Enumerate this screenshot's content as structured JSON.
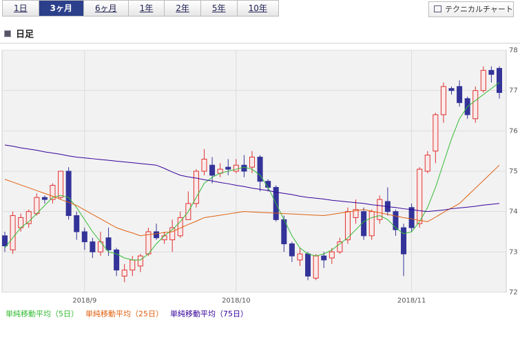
{
  "tabs": [
    {
      "label": "1日",
      "active": false
    },
    {
      "label": "3ヶ月",
      "active": true
    },
    {
      "label": "6ヶ月",
      "active": false
    },
    {
      "label": "1年",
      "active": false
    },
    {
      "label": "2年",
      "active": false
    },
    {
      "label": "5年",
      "active": false
    },
    {
      "label": "10年",
      "active": false
    }
  ],
  "button": "テクニカルチャート",
  "heading": "日足",
  "chart_data": {
    "type": "candlestick",
    "categories": [
      null,
      null,
      null,
      null,
      null,
      null,
      null,
      null,
      null,
      null,
      "2018/9",
      null,
      null,
      null,
      null,
      null,
      null,
      null,
      null,
      null,
      null,
      null,
      null,
      null,
      null,
      null,
      null,
      null,
      null,
      "2018/10",
      null,
      null,
      null,
      null,
      null,
      null,
      null,
      null,
      null,
      null,
      null,
      null,
      null,
      null,
      null,
      null,
      null,
      null,
      null,
      null,
      null,
      "2018/11",
      null,
      null,
      null,
      null,
      null,
      null,
      null,
      null,
      null,
      null,
      null
    ],
    "open": [
      73.4,
      73.05,
      73.6,
      73.7,
      73.95,
      74.35,
      74.3,
      74.35,
      75.0,
      73.9,
      73.5,
      73.25,
      73.0,
      73.35,
      73.05,
      72.4,
      72.55,
      72.65,
      72.95,
      73.5,
      73.3,
      73.3,
      73.4,
      73.8,
      74.2,
      75.0,
      75.15,
      74.95,
      75.1,
      75.0,
      75.15,
      75.1,
      75.35,
      74.75,
      74.6,
      73.8,
      73.2,
      72.8,
      72.95,
      72.35,
      72.9,
      72.85,
      73.0,
      73.3,
      73.85,
      74.0,
      73.4,
      73.8,
      74.25,
      74.0,
      73.6,
      74.1,
      73.7,
      75.0,
      75.5,
      76.4,
      77.05,
      77.1,
      76.8,
      76.3,
      77.0,
      77.5,
      77.55
    ],
    "high": [
      73.5,
      74.0,
      73.95,
      74.05,
      74.45,
      74.4,
      74.7,
      75.0,
      75.1,
      74.0,
      73.6,
      73.35,
      73.5,
      73.6,
      73.1,
      72.7,
      72.9,
      72.95,
      73.6,
      73.7,
      73.5,
      73.8,
      74.0,
      74.5,
      75.05,
      75.55,
      75.35,
      75.2,
      75.3,
      75.3,
      75.4,
      75.5,
      75.4,
      74.8,
      74.65,
      73.9,
      73.25,
      73.1,
      73.0,
      72.95,
      73.0,
      73.1,
      73.35,
      74.1,
      74.3,
      74.1,
      74.05,
      74.4,
      74.6,
      74.05,
      73.7,
      74.2,
      75.1,
      75.5,
      76.45,
      77.2,
      77.1,
      77.25,
      76.85,
      77.1,
      77.6,
      77.6,
      77.6
    ],
    "low": [
      73.0,
      72.95,
      73.5,
      73.6,
      73.9,
      74.2,
      74.2,
      74.3,
      73.8,
      73.3,
      73.05,
      72.85,
      72.9,
      72.9,
      72.4,
      72.25,
      72.4,
      72.5,
      72.9,
      73.3,
      73.2,
      73.0,
      73.35,
      73.8,
      74.1,
      74.9,
      74.7,
      74.85,
      74.9,
      74.95,
      74.85,
      74.95,
      74.5,
      74.5,
      73.75,
      73.0,
      72.75,
      72.65,
      72.3,
      72.3,
      72.6,
      72.7,
      72.95,
      73.2,
      73.7,
      73.3,
      73.3,
      73.7,
      73.9,
      73.4,
      72.4,
      73.5,
      73.6,
      74.95,
      75.2,
      76.2,
      76.9,
      76.6,
      76.3,
      76.2,
      76.95,
      77.2,
      76.8
    ],
    "close": [
      73.15,
      73.9,
      73.85,
      74.0,
      74.35,
      74.3,
      74.65,
      75.0,
      73.9,
      73.5,
      73.25,
      73.0,
      73.25,
      73.05,
      72.55,
      72.55,
      72.8,
      72.9,
      73.5,
      73.35,
      73.4,
      73.6,
      73.85,
      74.2,
      75.0,
      75.3,
      74.9,
      75.05,
      75.05,
      75.15,
      75.0,
      75.35,
      74.75,
      74.6,
      73.8,
      73.2,
      72.9,
      72.95,
      72.4,
      72.9,
      72.8,
      73.0,
      73.25,
      74.0,
      74.05,
      73.4,
      74.0,
      74.3,
      74.0,
      73.55,
      72.95,
      73.6,
      75.05,
      75.4,
      76.4,
      77.1,
      77.0,
      76.7,
      76.4,
      77.0,
      77.5,
      77.4,
      76.95
    ],
    "up_color": "#e03030",
    "down_color": "#333399",
    "overlays": [
      {
        "name": "単純移動平均（5日）",
        "color": "#33bb33",
        "values": [
          73.1,
          73.35,
          73.6,
          73.75,
          73.95,
          74.15,
          74.35,
          74.4,
          74.35,
          74.1,
          73.8,
          73.5,
          73.25,
          73.0,
          72.95,
          72.85,
          72.8,
          72.8,
          72.95,
          73.2,
          73.4,
          73.55,
          73.75,
          74.0,
          74.35,
          74.7,
          74.85,
          74.95,
          75.0,
          75.05,
          75.1,
          75.05,
          74.9,
          74.6,
          74.2,
          73.8,
          73.4,
          73.1,
          72.95,
          72.9,
          72.95,
          73.05,
          73.2,
          73.35,
          73.55,
          73.75,
          73.85,
          73.9,
          73.8,
          73.6,
          73.45,
          73.5,
          73.75,
          74.1,
          74.6,
          75.2,
          75.8,
          76.3,
          76.6,
          76.75,
          76.9,
          77.05,
          77.2
        ]
      },
      {
        "name": "単純移動平均（25日）",
        "color": "#e06010",
        "values": [
          74.8,
          74.73,
          74.66,
          74.59,
          74.52,
          74.45,
          74.38,
          74.3,
          74.23,
          74.15,
          74.04,
          73.93,
          73.82,
          73.71,
          73.6,
          73.53,
          73.47,
          73.4,
          73.43,
          73.45,
          73.48,
          73.5,
          73.59,
          73.68,
          73.76,
          73.85,
          73.88,
          73.91,
          73.94,
          73.97,
          74.0,
          73.99,
          73.98,
          73.97,
          73.96,
          73.95,
          73.94,
          73.93,
          73.92,
          73.91,
          73.9,
          73.93,
          73.96,
          73.99,
          74.02,
          74.05,
          74.01,
          73.97,
          73.93,
          73.89,
          73.85,
          73.82,
          73.78,
          73.75,
          73.86,
          73.98,
          74.09,
          74.2,
          74.39,
          74.58,
          74.77,
          74.96,
          75.15
        ]
      },
      {
        "name": "単純移動平均（75日）",
        "color": "#330099",
        "values": [
          75.65,
          75.62,
          75.58,
          75.55,
          75.52,
          75.48,
          75.45,
          75.42,
          75.38,
          75.35,
          75.33,
          75.31,
          75.29,
          75.27,
          75.25,
          75.23,
          75.21,
          75.19,
          75.17,
          75.15,
          75.07,
          74.98,
          74.9,
          74.86,
          74.83,
          74.79,
          74.76,
          74.72,
          74.69,
          74.65,
          74.62,
          74.58,
          74.55,
          74.52,
          74.48,
          74.45,
          74.42,
          74.38,
          74.35,
          74.33,
          74.31,
          74.28,
          74.26,
          74.24,
          74.22,
          74.2,
          74.17,
          74.15,
          74.12,
          74.1,
          74.07,
          74.05,
          74.02,
          74.0,
          74.02,
          74.04,
          74.07,
          74.09,
          74.11,
          74.13,
          74.16,
          74.18,
          74.2
        ]
      }
    ],
    "ylim": [
      72,
      78
    ],
    "yticks": [
      72,
      73,
      74,
      75,
      76,
      77,
      78
    ],
    "grid": true
  }
}
